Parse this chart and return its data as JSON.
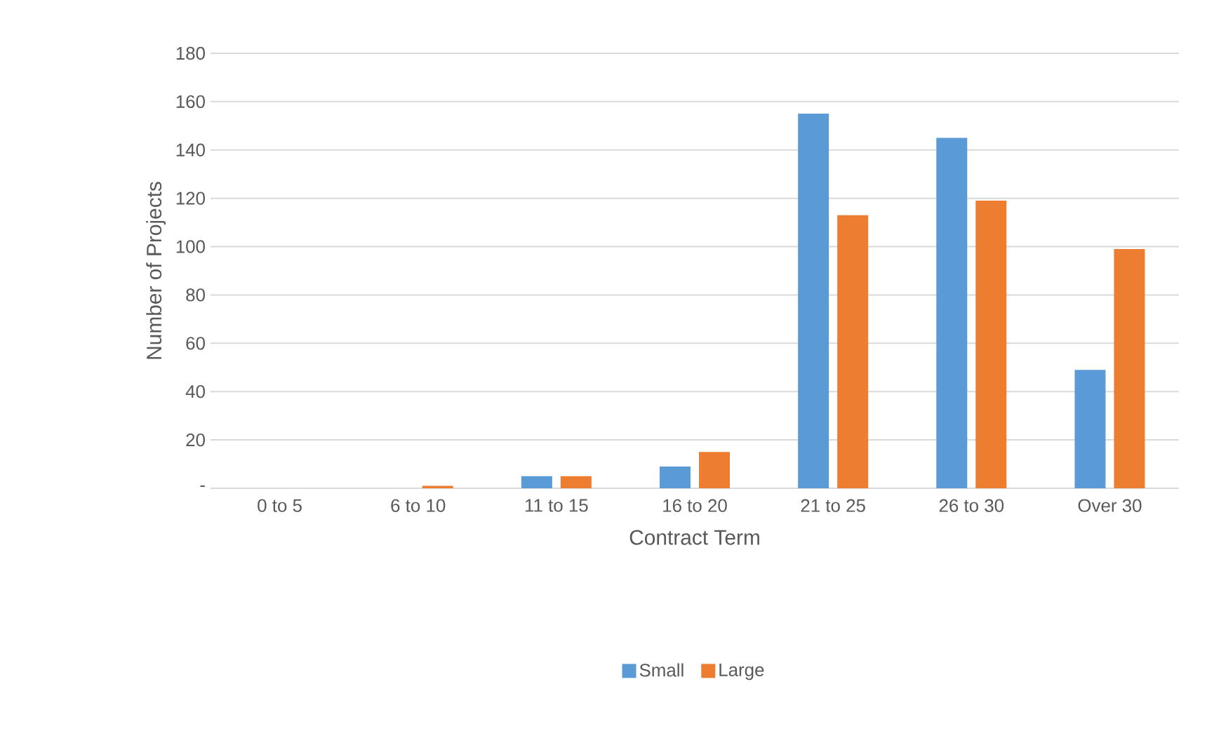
{
  "chart_data": {
    "type": "bar",
    "xlabel": "Contract Term",
    "ylabel": "Number of Projects",
    "categories": [
      "0 to 5",
      "6 to 10",
      "11 to 15",
      "16 to 20",
      "21 to 25",
      "26 to 30",
      "Over 30"
    ],
    "series": [
      {
        "name": "Small",
        "color": "#5b9bd5",
        "values": [
          0,
          0,
          5,
          9,
          155,
          145,
          49
        ]
      },
      {
        "name": "Large",
        "color": "#ed7d31",
        "values": [
          0,
          1,
          5,
          15,
          113,
          119,
          99
        ]
      }
    ],
    "ylim": [
      0,
      180
    ],
    "yticks": [
      {
        "value": 0,
        "label": "-"
      },
      20,
      40,
      60,
      80,
      100,
      120,
      140,
      160,
      180
    ],
    "grid": "y",
    "legend": "bottom"
  }
}
